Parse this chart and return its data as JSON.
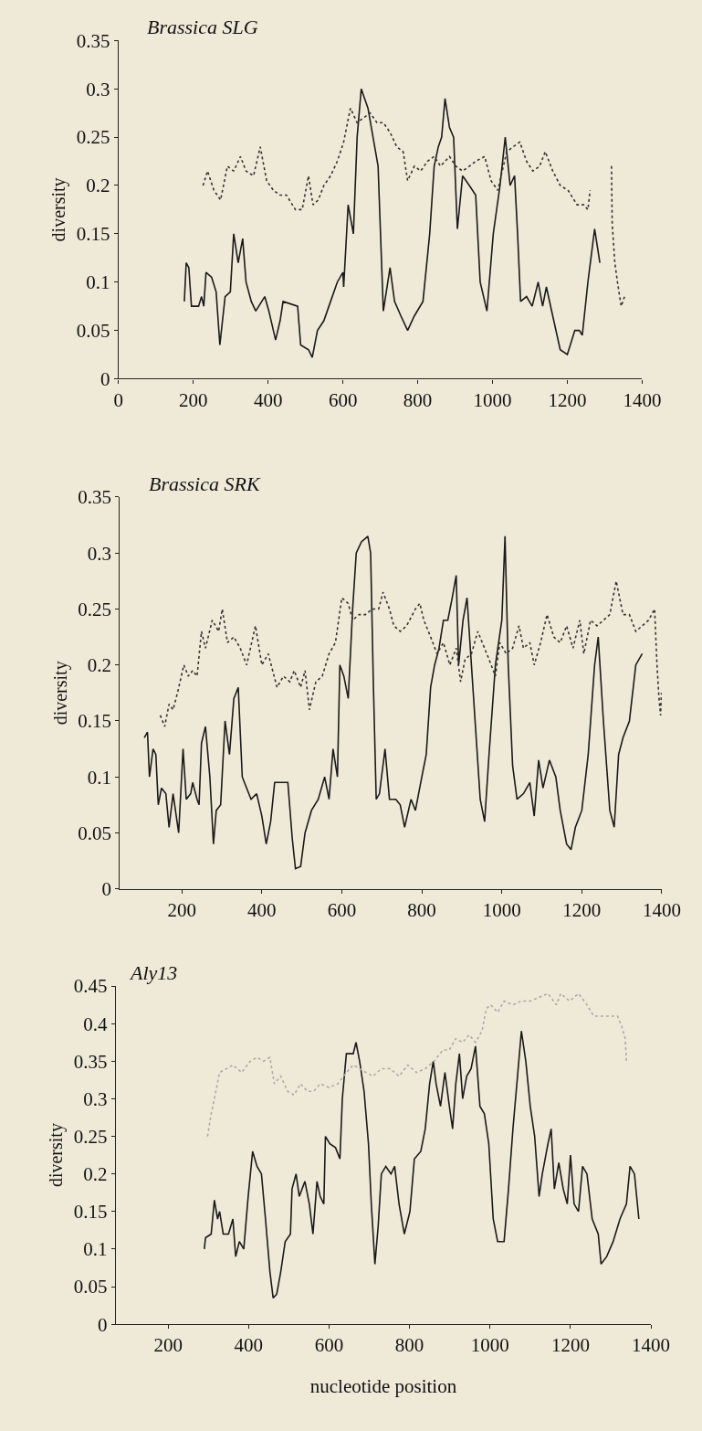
{
  "chart_data": [
    {
      "type": "line",
      "title": "Brassica SLG",
      "ylabel": "diversity",
      "xlim": [
        0,
        1400
      ],
      "ylim": [
        0,
        0.35
      ],
      "xticks": [
        0,
        200,
        400,
        600,
        800,
        1000,
        1200,
        1400
      ],
      "yticks": [
        0,
        0.05,
        0.1,
        0.15,
        0.2,
        0.25,
        0.3,
        0.35
      ],
      "grid": false,
      "series": [
        {
          "color": "#1a1a1a",
          "line_style": "solid",
          "x": [
            176,
            181,
            188,
            195,
            214,
            222,
            228,
            234,
            249,
            261,
            271,
            285,
            299,
            308,
            320,
            332,
            341,
            355,
            367,
            391,
            402,
            420,
            432,
            440,
            479,
            487,
            508,
            518,
            532,
            549,
            567,
            585,
            600,
            602,
            614,
            628,
            638,
            649,
            667,
            685,
            694,
            708,
            726,
            738,
            755,
            773,
            791,
            814,
            832,
            844,
            855,
            864,
            873,
            885,
            896,
            906,
            920,
            938,
            955,
            967,
            985,
            1002,
            1020,
            1034,
            1047,
            1059,
            1067,
            1075,
            1091,
            1106,
            1122,
            1134,
            1144,
            1161,
            1181,
            1200,
            1220,
            1232,
            1240,
            1255,
            1273,
            1287
          ],
          "values": [
            0.08,
            0.12,
            0.115,
            0.075,
            0.075,
            0.085,
            0.075,
            0.11,
            0.105,
            0.09,
            0.035,
            0.085,
            0.09,
            0.15,
            0.12,
            0.145,
            0.1,
            0.08,
            0.07,
            0.085,
            0.07,
            0.04,
            0.06,
            0.08,
            0.075,
            0.035,
            0.03,
            0.022,
            0.05,
            0.06,
            0.08,
            0.1,
            0.11,
            0.095,
            0.18,
            0.15,
            0.25,
            0.3,
            0.28,
            0.24,
            0.22,
            0.07,
            0.115,
            0.08,
            0.065,
            0.05,
            0.065,
            0.08,
            0.15,
            0.22,
            0.24,
            0.25,
            0.29,
            0.26,
            0.25,
            0.155,
            0.21,
            0.2,
            0.19,
            0.1,
            0.07,
            0.15,
            0.2,
            0.25,
            0.2,
            0.21,
            0.15,
            0.08,
            0.085,
            0.075,
            0.1,
            0.075,
            0.095,
            0.065,
            0.03,
            0.025,
            0.05,
            0.05,
            0.045,
            0.1,
            0.155,
            0.12
          ]
        },
        {
          "color": "#333333",
          "line_style": "dotted",
          "x": [
            226,
            238,
            255,
            273,
            291,
            308,
            326,
            341,
            361,
            379,
            396,
            414,
            432,
            449,
            473,
            491,
            508,
            520,
            534,
            549,
            567,
            585,
            602,
            620,
            638,
            655,
            673,
            691,
            708,
            726,
            744,
            761,
            773,
            791,
            808,
            826,
            844,
            861,
            885,
            902,
            920,
            938,
            955,
            979,
            996,
            1014,
            1038,
            1055,
            1073,
            1091,
            1108,
            1126,
            1141,
            1161,
            1181,
            1202,
            1226,
            1244,
            1255,
            1261,
            1290,
            1318,
            1320,
            1327,
            1334,
            1344,
            1353
          ],
          "values": [
            0.2,
            0.215,
            0.195,
            0.185,
            0.22,
            0.215,
            0.23,
            0.215,
            0.21,
            0.24,
            0.205,
            0.195,
            0.19,
            0.19,
            0.175,
            0.175,
            0.21,
            0.18,
            0.185,
            0.2,
            0.21,
            0.225,
            0.245,
            0.28,
            0.265,
            0.27,
            0.275,
            0.265,
            0.265,
            0.255,
            0.24,
            0.235,
            0.205,
            0.22,
            0.215,
            0.225,
            0.23,
            0.22,
            0.23,
            0.22,
            0.215,
            0.22,
            0.225,
            0.23,
            0.205,
            0.195,
            0.235,
            0.24,
            0.245,
            0.225,
            0.215,
            0.22,
            0.235,
            0.215,
            0.2,
            0.195,
            0.18,
            0.18,
            0.175,
            0.195,
            null,
            0.22,
            0.16,
            0.12,
            0.1,
            0.075,
            0.085
          ]
        }
      ]
    },
    {
      "type": "line",
      "title": "Brassica SRK",
      "ylabel": "diversity",
      "xlim": [
        45,
        1400
      ],
      "ylim": [
        0,
        0.35
      ],
      "xticks": [
        200,
        400,
        600,
        800,
        1000,
        1200,
        1400
      ],
      "yticks": [
        0,
        0.05,
        0.1,
        0.15,
        0.2,
        0.25,
        0.3,
        0.35
      ],
      "grid": false,
      "series": [
        {
          "color": "#1a1a1a",
          "line_style": "solid",
          "x": [
            106,
            114,
            119,
            128,
            135,
            141,
            149,
            160,
            168,
            178,
            192,
            203,
            211,
            222,
            227,
            238,
            243,
            249,
            259,
            270,
            279,
            286,
            297,
            308,
            319,
            330,
            341,
            351,
            362,
            373,
            387,
            400,
            411,
            422,
            432,
            465,
            476,
            484,
            497,
            508,
            524,
            541,
            557,
            568,
            578,
            589,
            595,
            605,
            616,
            627,
            636,
            649,
            665,
            672,
            679,
            686,
            694,
            708,
            719,
            735,
            746,
            757,
            773,
            784,
            800,
            811,
            822,
            832,
            843,
            854,
            865,
            876,
            886,
            892,
            903,
            913,
            924,
            935,
            946,
            957,
            968,
            984,
            1000,
            1008,
            1016,
            1027,
            1038,
            1054,
            1070,
            1081,
            1092,
            1103,
            1119,
            1135,
            1146,
            1162,
            1173,
            1184,
            1200,
            1216,
            1232,
            1241,
            1254,
            1270,
            1281,
            1292,
            1303,
            1319,
            1335,
            1351
          ],
          "values": [
            0.135,
            0.14,
            0.1,
            0.125,
            0.12,
            0.075,
            0.09,
            0.085,
            0.055,
            0.085,
            0.05,
            0.125,
            0.08,
            0.085,
            0.095,
            0.08,
            0.075,
            0.13,
            0.145,
            0.1,
            0.04,
            0.07,
            0.075,
            0.15,
            0.12,
            0.17,
            0.18,
            0.1,
            0.09,
            0.08,
            0.085,
            0.065,
            0.04,
            0.06,
            0.095,
            0.095,
            0.045,
            0.018,
            0.02,
            0.05,
            0.07,
            0.08,
            0.1,
            0.08,
            0.125,
            0.1,
            0.2,
            0.19,
            0.17,
            0.25,
            0.3,
            0.31,
            0.315,
            0.3,
            0.18,
            0.08,
            0.085,
            0.125,
            0.08,
            0.08,
            0.075,
            0.055,
            0.08,
            0.07,
            0.1,
            0.12,
            0.18,
            0.2,
            0.215,
            0.24,
            0.24,
            0.26,
            0.28,
            0.2,
            0.24,
            0.26,
            0.2,
            0.14,
            0.08,
            0.06,
            0.12,
            0.2,
            0.24,
            0.315,
            0.2,
            0.11,
            0.08,
            0.085,
            0.095,
            0.065,
            0.115,
            0.09,
            0.115,
            0.1,
            0.07,
            0.04,
            0.035,
            0.055,
            0.07,
            0.12,
            0.2,
            0.225,
            0.15,
            0.07,
            0.055,
            0.12,
            0.135,
            0.15,
            0.2,
            0.21
          ]
        },
        {
          "color": "#333333",
          "line_style": "dotted",
          "x": [
            146,
            157,
            168,
            178,
            189,
            205,
            216,
            227,
            238,
            249,
            259,
            276,
            292,
            301,
            314,
            330,
            346,
            362,
            384,
            400,
            416,
            438,
            454,
            470,
            481,
            497,
            508,
            519,
            535,
            551,
            568,
            584,
            600,
            616,
            627,
            643,
            659,
            676,
            692,
            703,
            719,
            730,
            746,
            762,
            784,
            795,
            805,
            822,
            838,
            854,
            870,
            886,
            897,
            908,
            924,
            940,
            951,
            968,
            984,
            995,
            1011,
            1027,
            1043,
            1054,
            1070,
            1081,
            1097,
            1113,
            1130,
            1146,
            1162,
            1178,
            1195,
            1205,
            1222,
            1238,
            1254,
            1270,
            1286,
            1303,
            1319,
            1335,
            1351,
            1367,
            1382,
            1388,
            1393,
            1397,
            1399
          ],
          "values": [
            0.155,
            0.145,
            0.165,
            0.16,
            0.175,
            0.2,
            0.19,
            0.195,
            0.19,
            0.23,
            0.215,
            0.24,
            0.23,
            0.25,
            0.22,
            0.225,
            0.215,
            0.2,
            0.235,
            0.2,
            0.21,
            0.18,
            0.19,
            0.185,
            0.195,
            0.18,
            0.195,
            0.16,
            0.185,
            0.19,
            0.21,
            0.22,
            0.26,
            0.255,
            0.24,
            0.245,
            0.245,
            0.25,
            0.25,
            0.265,
            0.25,
            0.235,
            0.23,
            0.235,
            0.25,
            0.255,
            0.24,
            0.225,
            0.21,
            0.22,
            0.2,
            0.215,
            0.185,
            0.205,
            0.21,
            0.23,
            0.22,
            0.205,
            0.19,
            0.22,
            0.21,
            0.215,
            0.235,
            0.215,
            0.22,
            0.2,
            0.22,
            0.245,
            0.225,
            0.22,
            0.235,
            0.215,
            0.24,
            0.21,
            0.24,
            0.235,
            0.24,
            0.245,
            0.275,
            0.245,
            0.245,
            0.23,
            0.235,
            0.24,
            0.25,
            0.2,
            0.17,
            0.155,
            0.175
          ]
        }
      ]
    },
    {
      "type": "line",
      "title": "Aly13",
      "ylabel": "diversity",
      "xlabel": "nucleotide position",
      "xlim": [
        70,
        1400
      ],
      "ylim": [
        0,
        0.45
      ],
      "xticks": [
        200,
        400,
        600,
        800,
        1000,
        1200,
        1400
      ],
      "yticks": [
        0,
        0.05,
        0.1,
        0.15,
        0.2,
        0.25,
        0.3,
        0.35,
        0.4,
        0.45
      ],
      "grid": false,
      "series": [
        {
          "color": "#1a1a1a",
          "line_style": "solid",
          "x": [
            290,
            293,
            307,
            315,
            323,
            328,
            337,
            350,
            361,
            368,
            377,
            388,
            399,
            410,
            421,
            432,
            442,
            453,
            461,
            470,
            480,
            491,
            504,
            508,
            518,
            526,
            540,
            551,
            560,
            570,
            578,
            587,
            591,
            602,
            616,
            627,
            633,
            643,
            660,
            667,
            676,
            687,
            698,
            705,
            714,
            722,
            730,
            741,
            754,
            763,
            774,
            787,
            801,
            812,
            828,
            839,
            850,
            859,
            866,
            877,
            888,
            899,
            907,
            915,
            924,
            932,
            942,
            953,
            964,
            975,
            986,
            997,
            1008,
            1019,
            1035,
            1046,
            1057,
            1070,
            1078,
            1089,
            1100,
            1111,
            1122,
            1130,
            1144,
            1152,
            1160,
            1171,
            1182,
            1192,
            1200,
            1209,
            1220,
            1230,
            1241,
            1254,
            1269,
            1276,
            1290,
            1306,
            1323,
            1339,
            1348,
            1359,
            1370
          ],
          "values": [
            0.1,
            0.115,
            0.12,
            0.165,
            0.14,
            0.15,
            0.12,
            0.12,
            0.14,
            0.09,
            0.11,
            0.1,
            0.17,
            0.23,
            0.21,
            0.2,
            0.14,
            0.07,
            0.035,
            0.04,
            0.07,
            0.11,
            0.12,
            0.18,
            0.2,
            0.17,
            0.19,
            0.16,
            0.12,
            0.19,
            0.17,
            0.16,
            0.25,
            0.24,
            0.235,
            0.22,
            0.3,
            0.36,
            0.36,
            0.375,
            0.35,
            0.31,
            0.24,
            0.16,
            0.08,
            0.13,
            0.2,
            0.21,
            0.2,
            0.21,
            0.16,
            0.12,
            0.15,
            0.22,
            0.23,
            0.26,
            0.32,
            0.35,
            0.32,
            0.29,
            0.335,
            0.29,
            0.26,
            0.32,
            0.36,
            0.3,
            0.33,
            0.34,
            0.37,
            0.29,
            0.28,
            0.24,
            0.14,
            0.11,
            0.11,
            0.18,
            0.26,
            0.34,
            0.39,
            0.35,
            0.29,
            0.25,
            0.17,
            0.2,
            0.24,
            0.26,
            0.18,
            0.215,
            0.18,
            0.16,
            0.225,
            0.16,
            0.15,
            0.21,
            0.2,
            0.14,
            0.12,
            0.08,
            0.09,
            0.11,
            0.14,
            0.16,
            0.21,
            0.2,
            0.14
          ]
        },
        {
          "color": "#aaaaaa",
          "line_style": "dotted",
          "x": [
            298,
            307,
            315,
            328,
            345,
            361,
            383,
            404,
            421,
            437,
            453,
            464,
            480,
            497,
            513,
            529,
            546,
            562,
            578,
            600,
            622,
            643,
            660,
            676,
            692,
            709,
            730,
            752,
            774,
            796,
            817,
            839,
            861,
            883,
            899,
            915,
            932,
            948,
            964,
            980,
            991,
            1002,
            1019,
            1035,
            1057,
            1078,
            1100,
            1122,
            1144,
            1165,
            1176,
            1198,
            1220,
            1241,
            1258,
            1274,
            1296,
            1317,
            1328,
            1336,
            1339
          ],
          "values": [
            0.25,
            0.28,
            0.3,
            0.335,
            0.34,
            0.345,
            0.335,
            0.35,
            0.355,
            0.35,
            0.355,
            0.32,
            0.33,
            0.31,
            0.305,
            0.32,
            0.31,
            0.31,
            0.32,
            0.315,
            0.32,
            0.335,
            0.345,
            0.34,
            0.335,
            0.33,
            0.34,
            0.34,
            0.33,
            0.345,
            0.335,
            0.34,
            0.35,
            0.365,
            0.365,
            0.38,
            0.375,
            0.385,
            0.375,
            0.39,
            0.42,
            0.425,
            0.415,
            0.43,
            0.425,
            0.43,
            0.43,
            0.435,
            0.44,
            0.425,
            0.44,
            0.43,
            0.44,
            0.425,
            0.41,
            0.41,
            0.41,
            0.41,
            0.395,
            0.38,
            0.35
          ]
        }
      ]
    }
  ]
}
